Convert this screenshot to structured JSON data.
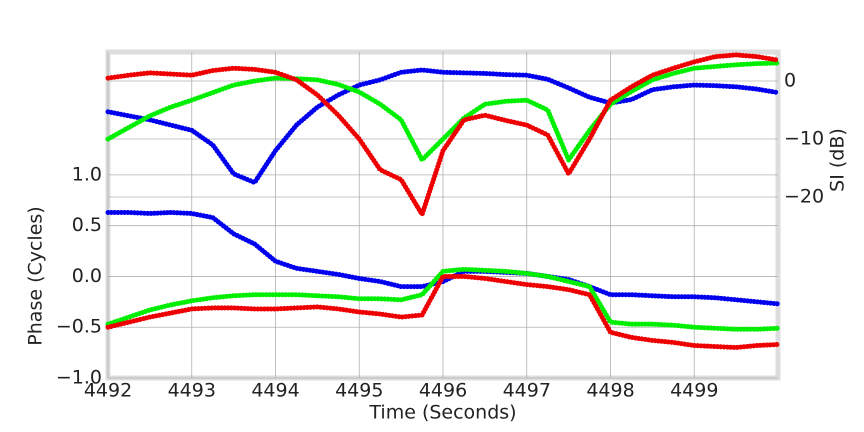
{
  "chart_data": {
    "type": "line",
    "xlabel": "Time (Seconds)",
    "ylabel": "Phase (Cycles)",
    "y2label": "SI (dB)",
    "xlim": [
      4492,
      4500
    ],
    "xticks": [
      4492,
      4493,
      4494,
      4495,
      4496,
      4497,
      4498,
      4499
    ],
    "ylim": [
      -1,
      2.21
    ],
    "yticks": [
      {
        "value": -1,
        "label": "−1.0"
      },
      {
        "value": -0.5,
        "label": "−0.5"
      },
      {
        "value": 0,
        "label": "0.0"
      },
      {
        "value": 0.5,
        "label": "0.5"
      },
      {
        "value": 1,
        "label": "1.0"
      }
    ],
    "y2lim": [
      -51.2,
      5
    ],
    "y2ticks": [
      {
        "value": -20,
        "label": "−20"
      },
      {
        "value": -10,
        "label": "−10"
      },
      {
        "value": 0,
        "label": "0"
      }
    ],
    "grid": true,
    "x": [
      4492,
      4492.25,
      4492.5,
      4492.75,
      4493,
      4493.25,
      4493.5,
      4493.75,
      4494,
      4494.25,
      4494.5,
      4494.75,
      4495,
      4495.25,
      4495.5,
      4495.75,
      4496,
      4496.25,
      4496.5,
      4496.75,
      4497,
      4497.25,
      4497.5,
      4497.75,
      4498,
      4498.25,
      4498.5,
      4498.75,
      4499,
      4499.25,
      4499.5,
      4499.75,
      4500
    ],
    "series": [
      {
        "color": "#0000ee",
        "values": [
          0.63,
          0.63,
          0.62,
          0.63,
          0.62,
          0.58,
          0.42,
          0.32,
          0.15,
          0.08,
          0.05,
          0.02,
          -0.02,
          -0.05,
          -0.1,
          -0.1,
          -0.05,
          0.05,
          0.05,
          0.04,
          0.03,
          0.0,
          -0.03,
          -0.1,
          -0.18,
          -0.18,
          -0.19,
          -0.2,
          -0.2,
          -0.21,
          -0.23,
          -0.25,
          -0.27
        ]
      },
      {
        "color": "#00ee00",
        "values": [
          -0.47,
          -0.4,
          -0.33,
          -0.28,
          -0.24,
          -0.21,
          -0.19,
          -0.18,
          -0.18,
          -0.18,
          -0.19,
          -0.2,
          -0.22,
          -0.22,
          -0.23,
          -0.18,
          0.05,
          0.07,
          0.06,
          0.05,
          0.03,
          0.0,
          -0.05,
          -0.1,
          -0.45,
          -0.47,
          -0.47,
          -0.48,
          -0.5,
          -0.51,
          -0.52,
          -0.52,
          -0.51
        ]
      },
      {
        "color": "#ee0000",
        "values": [
          -0.5,
          -0.45,
          -0.4,
          -0.36,
          -0.32,
          -0.31,
          -0.31,
          -0.32,
          -0.32,
          -0.31,
          -0.3,
          -0.32,
          -0.35,
          -0.37,
          -0.4,
          -0.38,
          0.0,
          0.0,
          -0.02,
          -0.05,
          -0.08,
          -0.1,
          -0.13,
          -0.18,
          -0.55,
          -0.6,
          -0.63,
          -0.65,
          -0.68,
          -0.69,
          -0.7,
          -0.68,
          -0.67
        ]
      },
      {
        "color": "#0000ee",
        "axis": "y2",
        "values": [
          -5.3,
          -6,
          -6.7,
          -7.6,
          -8.5,
          -11,
          -16,
          -17.5,
          -12,
          -7.6,
          -4.5,
          -2.4,
          -0.7,
          0.2,
          1.5,
          1.9,
          1.5,
          1.4,
          1.3,
          1.1,
          1.0,
          0.3,
          -1.2,
          -2.8,
          -3.8,
          -3.2,
          -1.5,
          -1,
          -0.7,
          -0.8,
          -1,
          -1.4,
          -2
        ]
      },
      {
        "color": "#00ee00",
        "axis": "y2",
        "values": [
          -10,
          -8,
          -6,
          -4.5,
          -3.3,
          -2,
          -0.7,
          0,
          0.5,
          0.4,
          0.2,
          -0.6,
          -1.9,
          -4,
          -6.7,
          -13.6,
          -10,
          -6.4,
          -4,
          -3.5,
          -3.3,
          -5,
          -13.6,
          -8.5,
          -4,
          -1.8,
          0.2,
          1.3,
          2.2,
          2.5,
          2.8,
          3,
          3.1
        ]
      },
      {
        "color": "#ee0000",
        "axis": "y2",
        "values": [
          0.5,
          1,
          1.4,
          1.2,
          1,
          1.8,
          2.2,
          2,
          1.5,
          0.2,
          -2.4,
          -5.9,
          -10,
          -15.3,
          -17,
          -23,
          -12,
          -6.7,
          -5.9,
          -6.8,
          -7.6,
          -9.3,
          -16,
          -10,
          -3.3,
          -1,
          1,
          2.2,
          3.3,
          4.2,
          4.5,
          4.2,
          3.6
        ]
      }
    ]
  }
}
